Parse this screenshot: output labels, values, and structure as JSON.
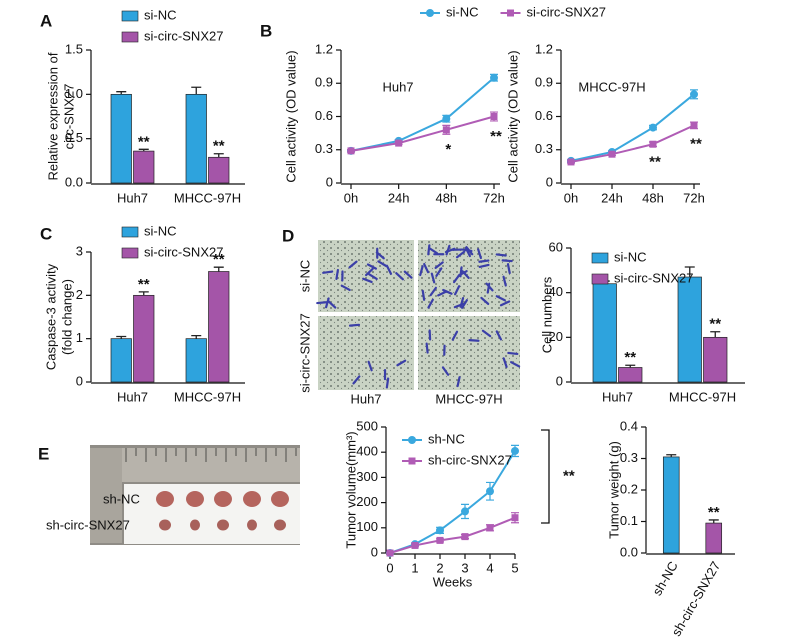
{
  "images": [
    {
      "panel": "D",
      "row_labels": [
        "si-NC",
        "si-circ-SNX27"
      ],
      "column_labels": [
        "Huh7",
        "MHCC-97H"
      ]
    },
    {
      "panel": "E",
      "labels": [
        "sh-NC",
        "sh-circ-SNX27"
      ]
    }
  ],
  "chart_data": [
    {
      "type": "bar",
      "panel": "A",
      "ylabel": [
        "Relative expression of",
        "circ-SNX27"
      ],
      "categories": [
        "Huh7",
        "MHCC-97H"
      ],
      "series": [
        {
          "name": "si-NC",
          "color": "#2ea3dd",
          "values": [
            1.0,
            1.0
          ],
          "errors": [
            0.03,
            0.08
          ]
        },
        {
          "name": "si-circ-SNX27",
          "color": "#a455a8",
          "values": [
            0.36,
            0.29
          ],
          "errors": [
            0.02,
            0.04
          ],
          "significance": [
            "**",
            "**"
          ]
        }
      ],
      "ylim": [
        0,
        1.5
      ],
      "yticks": [
        {
          "value": 0,
          "label": "0.0"
        },
        0.5,
        {
          "value": 1,
          "label": "1.0"
        },
        1.5
      ]
    },
    {
      "type": "line",
      "panel": "B",
      "title": "Huh7",
      "ylabel": "Cell activity (OD value)",
      "categories": [
        "0h",
        "24h",
        "48h",
        "72h"
      ],
      "series": [
        {
          "name": "si-NC",
          "color": "#3aa8de",
          "marker": "circle",
          "values": [
            0.29,
            0.38,
            0.58,
            0.95
          ],
          "errors": [
            0.01,
            0.01,
            0.03,
            0.03
          ]
        },
        {
          "name": "si-circ-SNX27",
          "color": "#b05cb5",
          "marker": "square",
          "values": [
            0.29,
            0.36,
            0.48,
            0.6
          ],
          "errors": [
            0.01,
            0.01,
            0.04,
            0.04
          ],
          "significance": [
            null,
            null,
            "*",
            "**"
          ]
        }
      ],
      "ylim": [
        0,
        1.2
      ],
      "yticks": [
        0,
        0.3,
        0.6,
        0.9,
        1.2
      ]
    },
    {
      "type": "line",
      "title": "MHCC-97H",
      "ylabel": "Cell activity (OD value)",
      "categories": [
        "0h",
        "24h",
        "48h",
        "72h"
      ],
      "series": [
        {
          "color": "#3aa8de",
          "marker": "circle",
          "values": [
            0.2,
            0.28,
            0.5,
            0.8
          ],
          "errors": [
            0.01,
            0.01,
            0.02,
            0.04
          ]
        },
        {
          "color": "#b05cb5",
          "marker": "square",
          "values": [
            0.19,
            0.26,
            0.35,
            0.52
          ],
          "errors": [
            0.01,
            0.01,
            0.02,
            0.03
          ],
          "significance": [
            null,
            null,
            "**",
            "**"
          ]
        }
      ],
      "ylim": [
        0,
        1.2
      ],
      "yticks": [
        0,
        0.3,
        0.6,
        0.9,
        1.2
      ]
    },
    {
      "type": "bar",
      "panel": "C",
      "ylabel": [
        "Caspase-3 activity",
        "(fold change)"
      ],
      "categories": [
        "Huh7",
        "MHCC-97H"
      ],
      "series": [
        {
          "name": "si-NC",
          "color": "#2ea3dd",
          "values": [
            1.0,
            1.0
          ],
          "errors": [
            0.05,
            0.07
          ]
        },
        {
          "name": "si-circ-SNX27",
          "color": "#a455a8",
          "values": [
            2.0,
            2.55
          ],
          "errors": [
            0.08,
            0.1
          ],
          "significance": [
            "**",
            "**"
          ]
        }
      ],
      "ylim": [
        0,
        3
      ],
      "yticks": [
        0,
        1,
        2,
        3
      ]
    },
    {
      "type": "bar",
      "ylabel": "Cell numbers",
      "categories": [
        "Huh7",
        "MHCC-97H"
      ],
      "series": [
        {
          "name": "si-NC",
          "color": "#2ea3dd",
          "values": [
            44,
            47
          ],
          "errors": [
            1.2,
            4.5
          ]
        },
        {
          "name": "si-circ-SNX27",
          "color": "#a455a8",
          "values": [
            6.5,
            20
          ],
          "errors": [
            1.0,
            2.5
          ],
          "significance": [
            "**",
            "**"
          ]
        }
      ],
      "ylim": [
        0,
        60
      ],
      "yticks": [
        0,
        20,
        40,
        60
      ]
    },
    {
      "type": "line",
      "ylabel": "Tumor volume(mm³)",
      "xlabel": "Weeks",
      "annotation": "**",
      "x": [
        0,
        1,
        2,
        3,
        4,
        5
      ],
      "series": [
        {
          "name": "sh-NC",
          "color": "#3aa8de",
          "marker": "circle",
          "values": [
            0,
            35,
            90,
            165,
            245,
            405
          ],
          "errors": [
            0,
            5,
            12,
            28,
            35,
            22
          ]
        },
        {
          "name": "sh-circ-SNX27",
          "color": "#b05cb5",
          "marker": "square",
          "values": [
            0,
            30,
            50,
            65,
            100,
            140
          ],
          "errors": [
            0,
            5,
            6,
            8,
            12,
            20
          ]
        }
      ],
      "xlim": [
        0,
        5
      ],
      "xticks": [
        0,
        1,
        2,
        3,
        4,
        5
      ],
      "ylim": [
        0,
        500
      ],
      "yticks": [
        0,
        100,
        200,
        300,
        400,
        500
      ]
    },
    {
      "type": "bar",
      "ylabel": "Tumor weight (g)",
      "categories": [
        "sh-NC",
        "sh-circ-SNX27"
      ],
      "values": [
        0.305,
        0.095
      ],
      "errors": [
        0.007,
        0.01
      ],
      "colors": [
        "#2ea3dd",
        "#a455a8"
      ],
      "significance": [
        null,
        "**"
      ],
      "ylim": [
        0,
        0.4
      ],
      "yticks": [
        {
          "value": 0,
          "label": "0.0"
        },
        0.1,
        0.2,
        0.3,
        0.4
      ]
    }
  ]
}
